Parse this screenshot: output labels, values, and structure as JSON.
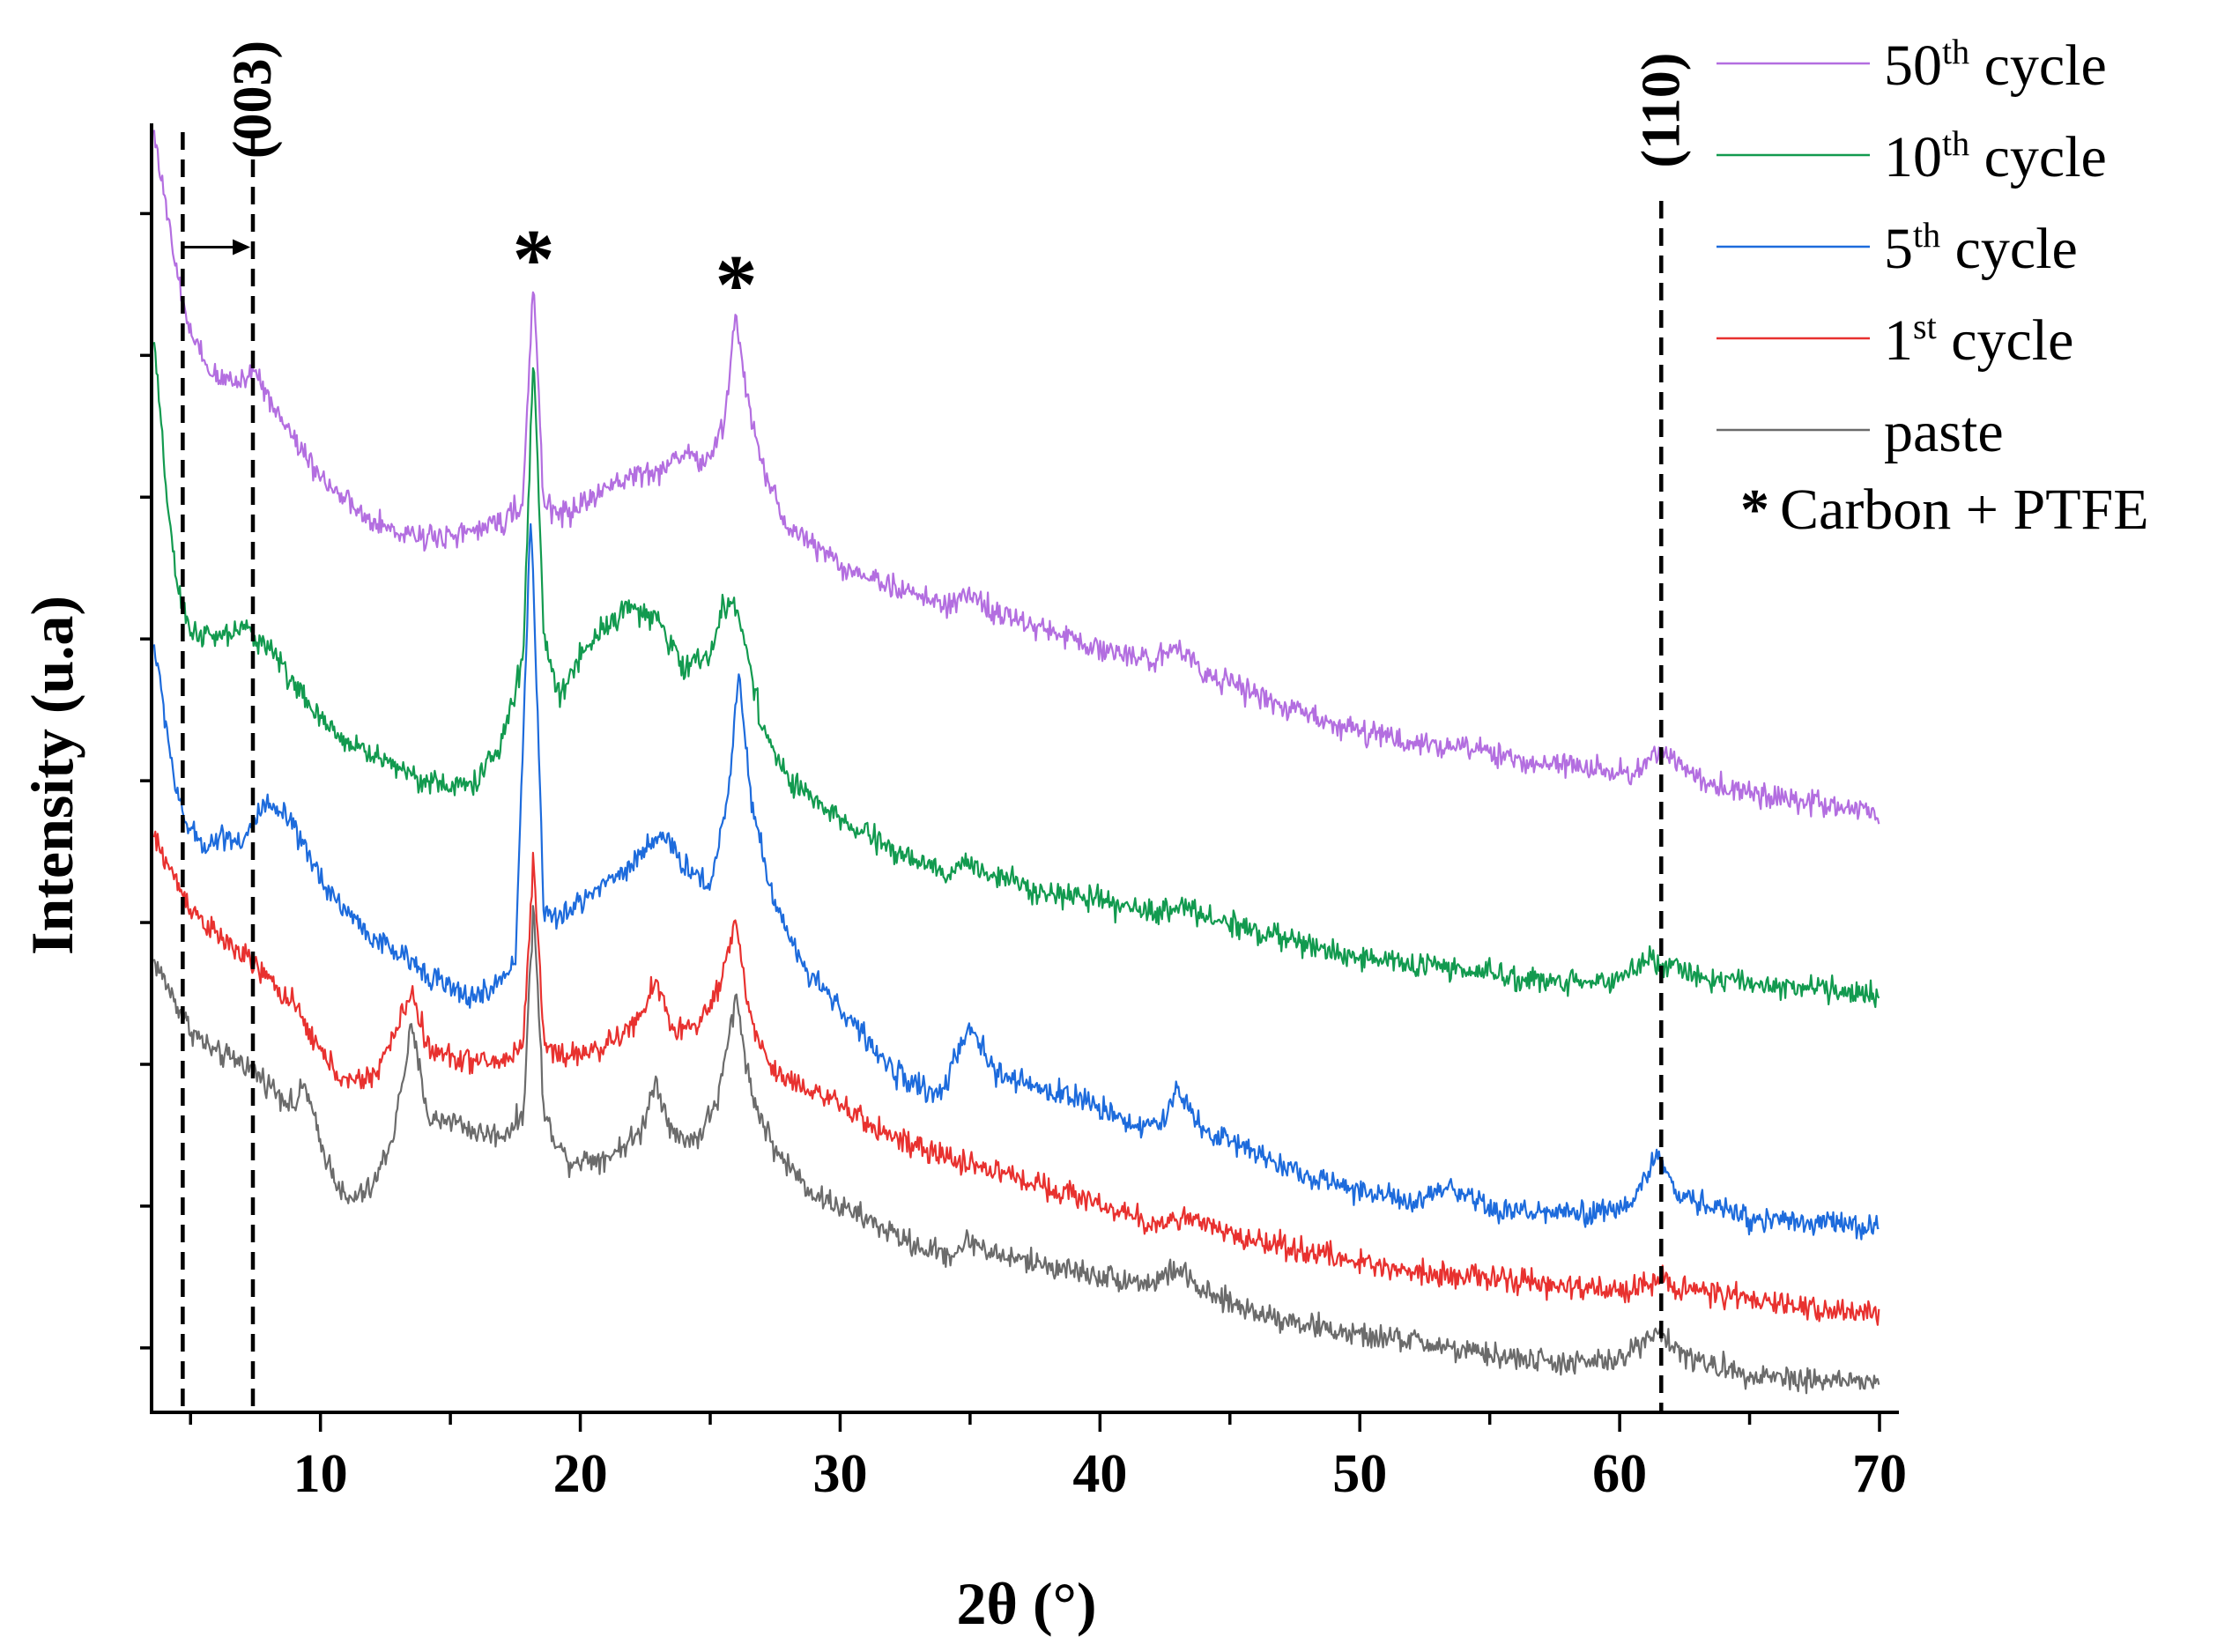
{
  "chart_data": {
    "type": "line",
    "xlabel": "2θ (°)",
    "ylabel": "Intensity (u.a)",
    "xlim": [
      3.5,
      70
    ],
    "xticks": [
      10,
      20,
      30,
      40,
      50,
      60,
      70
    ],
    "xtick_labels": [
      "10",
      "20",
      "30",
      "40",
      "50",
      "60",
      "70"
    ],
    "ylim": [
      0,
      100
    ],
    "ytick_count": 9,
    "ytick_values": [
      5,
      16,
      27,
      38,
      49,
      60,
      71,
      82,
      93
    ],
    "series": [
      {
        "name": "paste",
        "legend_main": "paste",
        "legend_sup": "",
        "legend_tail": "",
        "color": "#6b6b6b",
        "x": [
          3.6,
          4.0,
          4.5,
          5.0,
          5.5,
          6,
          7,
          8,
          9,
          9.4,
          10,
          11,
          12,
          12.8,
          13.5,
          14.2,
          15,
          16,
          17,
          17.8,
          18.2,
          18.6,
          19.5,
          21,
          22.3,
          22.9,
          23.6,
          24.5,
          25.3,
          26.0,
          26.6,
          27.5,
          29,
          31,
          33,
          34.3,
          35,
          36,
          38,
          40,
          42,
          43,
          44,
          46,
          48,
          50,
          52,
          54,
          56,
          58,
          60,
          61.4,
          62.2,
          63,
          65,
          67,
          70
        ],
        "y": [
          35,
          33.5,
          31.5,
          29.7,
          28.7,
          27.8,
          27.2,
          25.5,
          23.7,
          25.5,
          20.8,
          16.3,
          17.4,
          21.5,
          29.8,
          22.6,
          22.8,
          21.7,
          21.5,
          23,
          39.5,
          23,
          19.5,
          19.8,
          21.6,
          25.8,
          21.4,
          21.2,
          24.3,
          32.3,
          24.6,
          20.3,
          16.9,
          15,
          12.8,
          12.2,
          13.4,
          12.2,
          11.4,
          10.6,
          10.0,
          11.2,
          9.2,
          7.8,
          6.8,
          5.9,
          5.6,
          4.7,
          4.2,
          3.8,
          4.0,
          6.5,
          4.8,
          3.9,
          3.0,
          2.6,
          2.3
        ]
      },
      {
        "name": "1st cycle",
        "legend_main": "1",
        "legend_sup": "st",
        "legend_tail": " cycle",
        "color": "#e8312f",
        "x": [
          3.6,
          4.0,
          4.5,
          5.0,
          6,
          7,
          8,
          9,
          10,
          11,
          12,
          12.8,
          13.5,
          14.2,
          15,
          16,
          17,
          17.8,
          18.2,
          18.6,
          19.5,
          21,
          22.3,
          22.9,
          23.6,
          24.5,
          25.3,
          26.0,
          26.6,
          27.5,
          29,
          31,
          33,
          35,
          38,
          40,
          42,
          43,
          45,
          48,
          50,
          52,
          55,
          58,
          60,
          61.5,
          62.5,
          65,
          67,
          70
        ],
        "y": [
          44.5,
          43,
          41,
          39.2,
          37,
          35.5,
          33.6,
          31.5,
          28,
          25.5,
          26,
          29,
          32.7,
          28,
          27.6,
          27.2,
          27.2,
          28.5,
          43.2,
          28.5,
          27.6,
          28.4,
          30.5,
          33.5,
          29.6,
          30,
          32.5,
          38,
          30,
          26.3,
          25,
          22.5,
          20.4,
          19.3,
          17.5,
          16.2,
          14.5,
          15.2,
          13.8,
          12.5,
          11.6,
          11,
          10.4,
          9.7,
          9.4,
          10.4,
          9.6,
          8.7,
          8.2,
          7.6
        ]
      },
      {
        "name": "5th cycle",
        "legend_main": "5",
        "legend_sup": "th",
        "legend_tail": " cycle",
        "color": "#1d6bdc",
        "x": [
          3.6,
          4.0,
          4.5,
          5.0,
          5.6,
          6.3,
          7.0,
          7.8,
          8.7,
          9.5,
          10.5,
          12,
          14,
          15.5,
          16.5,
          17.5,
          18.1,
          18.6,
          19.2,
          20.5,
          22,
          23.0,
          24.0,
          25.0,
          25.7,
          26.1,
          26.6,
          27.3,
          28.3,
          30,
          32,
          33.8,
          35,
          36,
          37.5,
          39,
          40,
          41.5,
          42.5,
          43,
          44,
          46,
          48,
          50,
          52,
          53.5,
          55,
          57,
          59,
          60.5,
          61.5,
          62,
          63,
          65,
          67,
          70
        ],
        "y": [
          59.5,
          54.2,
          47.5,
          45,
          44,
          44.8,
          44.3,
          47,
          46.2,
          43.2,
          40,
          36.8,
          34.3,
          32.2,
          32.6,
          35,
          70,
          38.8,
          38.2,
          40.5,
          42.5,
          45,
          42.5,
          40.8,
          48,
          57.7,
          47.2,
          40.8,
          35.5,
          31.4,
          26.5,
          24.5,
          29.8,
          26.3,
          25.2,
          24.5,
          23.7,
          22.2,
          22.5,
          25.2,
          21.8,
          20.3,
          18.2,
          17.3,
          16.2,
          17.3,
          15.7,
          15.5,
          15.3,
          16.3,
          20.2,
          17.3,
          16.3,
          15.1,
          14.9,
          14.3
        ]
      },
      {
        "name": "10th cycle",
        "legend_main": "10",
        "legend_sup": "th",
        "legend_tail": " cycle",
        "color": "#129a4f",
        "x": [
          3.6,
          4.0,
          4.5,
          5.0,
          6,
          7,
          8,
          9,
          10,
          11,
          12,
          13,
          14,
          15,
          16,
          17,
          17.8,
          18.2,
          18.6,
          19.2,
          20,
          21,
          22,
          23,
          24,
          25,
          25.5,
          25.9,
          26.4,
          27,
          28,
          30,
          32,
          34,
          35,
          36,
          38,
          40,
          42,
          43,
          44,
          46,
          48,
          50,
          52,
          54,
          56,
          58,
          60,
          61,
          61.5,
          62.2,
          63,
          65,
          67,
          70
        ],
        "y": [
          83,
          73,
          63.5,
          60.7,
          60,
          60.8,
          59.5,
          56.5,
          53.6,
          52.1,
          51,
          50.1,
          49,
          48.5,
          48.9,
          52,
          58.5,
          82.5,
          60,
          55.5,
          58.8,
          61.2,
          62.6,
          61.2,
          57.8,
          58.8,
          62.5,
          62.7,
          59.5,
          53.2,
          49,
          45.9,
          43.7,
          41.7,
          42.6,
          41.6,
          40.4,
          39.6,
          38.7,
          39.4,
          38.5,
          37.4,
          36.2,
          35.3,
          34.8,
          34.3,
          33.7,
          33.4,
          33.6,
          35.3,
          34.5,
          34.7,
          33.8,
          33.2,
          33,
          32.5
        ]
      },
      {
        "name": "50th cycle",
        "legend_main": "50",
        "legend_sup": "th",
        "legend_tail": " cycle",
        "color": "#b36ee0",
        "x": [
          3.6,
          4.0,
          4.5,
          5.0,
          5.5,
          6,
          6.8,
          7.5,
          8,
          9,
          10,
          11,
          12,
          13,
          14,
          15,
          16,
          17,
          17.8,
          18.2,
          18.6,
          19.2,
          20,
          21,
          22,
          23,
          24,
          24.8,
          25.5,
          26.0,
          26.5,
          27.2,
          28,
          29,
          30,
          32,
          34,
          35,
          36,
          38,
          40,
          42,
          43,
          44,
          46,
          48,
          50,
          52,
          53.5,
          55,
          57,
          59,
          60.5,
          61.5,
          62.5,
          64,
          66,
          68,
          70
        ],
        "y": [
          99.5,
          94,
          88,
          83.6,
          81.5,
          80.2,
          80,
          80.9,
          78.7,
          75.5,
          72.7,
          70.6,
          68.9,
          68.3,
          68,
          68.1,
          68.3,
          69.2,
          70.7,
          87.7,
          70.4,
          69.6,
          70.3,
          71.7,
          72.7,
          73,
          74.5,
          73.5,
          76.3,
          85.3,
          77.5,
          72.3,
          68.6,
          67.4,
          65.7,
          64.1,
          62.6,
          63.4,
          62.0,
          60.6,
          59.3,
          58.2,
          59.6,
          57.5,
          55.6,
          54.1,
          52.9,
          51.8,
          51.9,
          51.0,
          50.3,
          50.0,
          49.6,
          51.3,
          49.8,
          48.4,
          47.8,
          47.0,
          46.4
        ]
      }
    ],
    "vlines": [
      {
        "x": 4.7,
        "label": ""
      },
      {
        "x": 7.4,
        "label": "(003)"
      },
      {
        "x": 61.6,
        "label": "(110)"
      }
    ],
    "stars": [
      {
        "x": 18.2,
        "y": 90,
        "label": "*"
      },
      {
        "x": 26.0,
        "y": 88,
        "label": "*"
      }
    ],
    "arrow": {
      "from": [
        4.7,
        90.4
      ],
      "to": [
        7.3,
        90.4
      ]
    },
    "legend_position": "top-right",
    "legend_note_symbol": "*",
    "legend_note_text": "Carbon + PTFE"
  }
}
